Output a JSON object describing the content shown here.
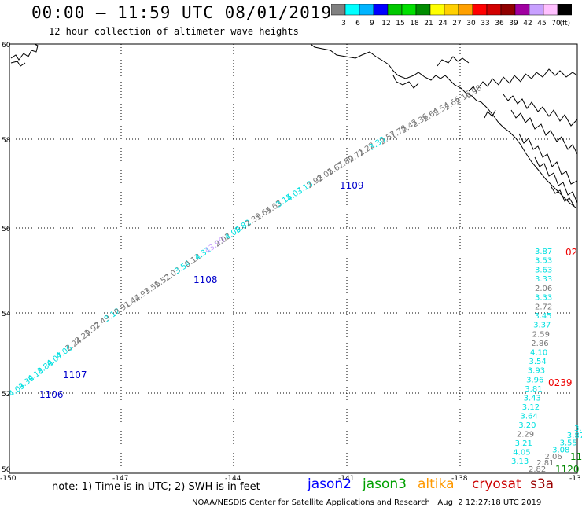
{
  "header": {
    "title": "00:00 – 11:59 UTC 08/01/2019",
    "subtitle": "12 hour collection of altimeter wave heights"
  },
  "legend": {
    "colors": [
      "#808080",
      "#00ffff",
      "#00b4ff",
      "#0000ff",
      "#00c800",
      "#00e000",
      "#008c00",
      "#ffff00",
      "#ffd000",
      "#ffa000",
      "#ff0000",
      "#d20000",
      "#900000",
      "#a000a0",
      "#c8a0ff",
      "#ffc0ff",
      "#000000"
    ],
    "labels": [
      "3",
      "6",
      "9",
      "12",
      "15",
      "18",
      "21",
      "24",
      "27",
      "30",
      "33",
      "36",
      "39",
      "42",
      "45",
      "70",
      "(ft)"
    ]
  },
  "axes": {
    "lat_labels": [
      "60",
      "58",
      "56",
      "54",
      "52",
      "50"
    ],
    "lon_labels": [
      "-150",
      "-147",
      "-144",
      "-141",
      "-138",
      "-13"
    ]
  },
  "note": "note: 1) Time is in UTC; 2) SWH is in feet",
  "satellites": [
    {
      "name": "jason2",
      "color": "#0000ff"
    },
    {
      "name": "jason3",
      "color": "#00a000"
    },
    {
      "name": "altika",
      "color": "#ff9900"
    },
    {
      "name": "cryosat",
      "color": "#cc0000"
    },
    {
      "name": "s3a",
      "color": "#990000"
    }
  ],
  "footer": {
    "org": "NOAA/NESDIS Center for Satellite Applications and Research",
    "timestamp": "Aug  2 12:27:18 UTC 2019"
  },
  "track1": {
    "labels": [
      "4.03",
      "4.38",
      "4.18",
      "3.88",
      "4.07",
      "4.06",
      "2.24",
      "2.29",
      "1.97",
      "2.49",
      "3.12",
      "0.91",
      "1.44",
      "2.93",
      "1.56",
      "1.52",
      "2.03",
      "3.54",
      "0.12",
      "4.31",
      "43.99",
      "2.02",
      "4.08",
      "3.82",
      "2.39",
      "1.64",
      "1.63",
      "3.15",
      "4.07",
      "3.13",
      "2.93",
      "2.05",
      "2.67",
      "2.80",
      "2.71",
      "2.22",
      "3.30",
      "2.57",
      "1.78",
      "2.43",
      "2.36",
      "2.64",
      "2.54",
      "2.66",
      "2.16",
      "0.98"
    ],
    "colors": [
      "#00e0e0",
      "#00e0e0",
      "#00e0e0",
      "#00e0e0",
      "#00e0e0",
      "#00e0e0",
      "#777777",
      "#777777",
      "#777777",
      "#777777",
      "#00e0e0",
      "#777777",
      "#777777",
      "#777777",
      "#777777",
      "#777777",
      "#777777",
      "#00e0e0",
      "#777777",
      "#00e0e0",
      "#c8a0ff",
      "#777777",
      "#00e0e0",
      "#00e0e0",
      "#777777",
      "#777777",
      "#777777",
      "#00e0e0",
      "#00e0e0",
      "#00e0e0",
      "#777777",
      "#777777",
      "#777777",
      "#777777",
      "#777777",
      "#777777",
      "#00e0e0",
      "#777777",
      "#777777",
      "#777777",
      "#777777",
      "#777777",
      "#777777",
      "#777777",
      "#777777",
      "#777777"
    ],
    "time_tags": [
      {
        "text": "1106",
        "color": "#0000cc"
      },
      {
        "text": "1107",
        "color": "#0000cc"
      },
      {
        "text": "1108",
        "color": "#0000cc"
      },
      {
        "text": "1109",
        "color": "#0000cc"
      }
    ]
  },
  "track2": {
    "labels": [
      "3.87",
      "3.53",
      "3.63",
      "3.33",
      "2.06",
      "3.33",
      "2.72",
      "3.45",
      "3.37",
      "2.59",
      "2.86",
      "4.10",
      "3.54",
      "3.93",
      "3.96",
      "3.81",
      "3.43",
      "3.12",
      "3.64",
      "3.20",
      "2.29",
      "3.21",
      "4.05",
      "3.13"
    ],
    "colors": [
      "#00e0e0",
      "#00e0e0",
      "#00e0e0",
      "#00e0e0",
      "#777777",
      "#00e0e0",
      "#777777",
      "#00e0e0",
      "#00e0e0",
      "#777777",
      "#777777",
      "#00e0e0",
      "#00e0e0",
      "#00e0e0",
      "#00e0e0",
      "#00e0e0",
      "#00e0e0",
      "#00e0e0",
      "#00e0e0",
      "#00e0e0",
      "#777777",
      "#00e0e0",
      "#00e0e0",
      "#00e0e0"
    ],
    "time_tags": [
      {
        "text": "02",
        "color": "#ee0000"
      },
      {
        "text": "0239",
        "color": "#ee0000"
      }
    ]
  },
  "track3": {
    "labels": [
      "2.82",
      "2.81",
      "2.06",
      "3.08",
      "3.55",
      "3.87",
      "3."
    ],
    "colors": [
      "#777777",
      "#777777",
      "#777777",
      "#00e0e0",
      "#00e0e0",
      "#00e0e0",
      "#00e0e0"
    ],
    "time_tags": [
      {
        "text": "11",
        "color": "#008800"
      },
      {
        "text": "1120",
        "color": "#008800"
      }
    ]
  }
}
